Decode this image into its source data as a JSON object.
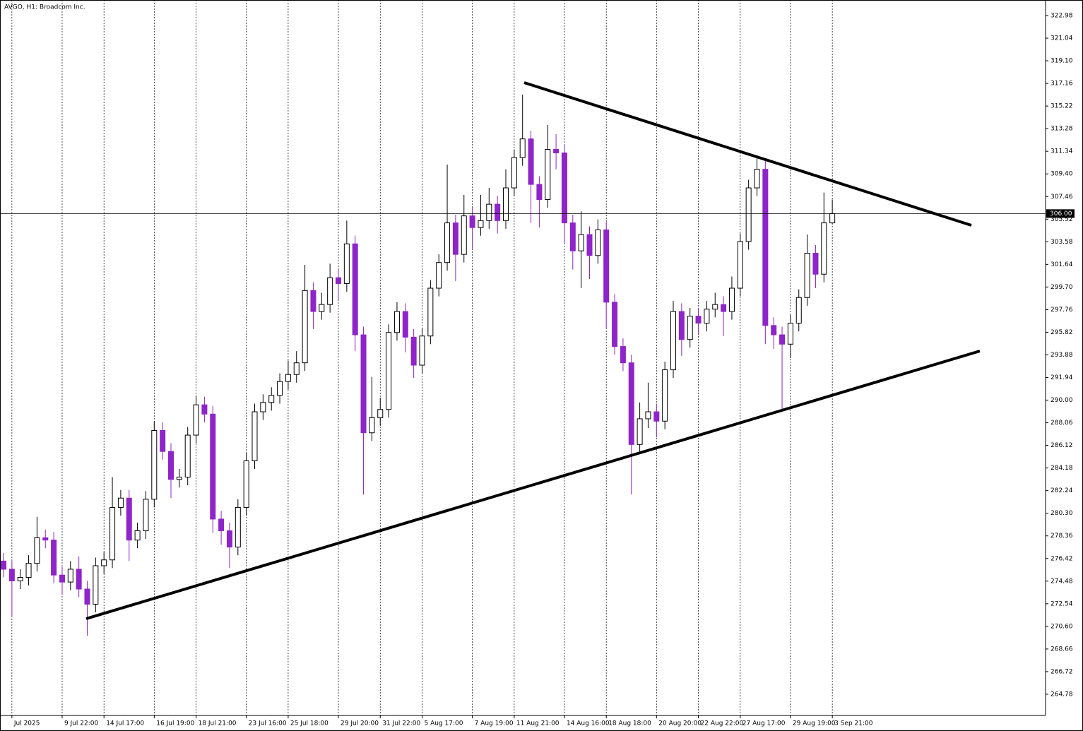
{
  "chart_data": {
    "type": "candlestick",
    "title": "AVGO, H1:  Broadcom Inc.",
    "up_color": "#ffffff",
    "down_color": "#8e24c9",
    "edge_color": "#000000",
    "ylim": [
      262.96,
      324.07
    ],
    "yticks": [
      264.78,
      266.72,
      268.66,
      {
        "value": 270.6,
        "label": "270.60"
      },
      272.54,
      274.48,
      276.42,
      278.36,
      {
        "value": 280.3,
        "label": "280.30"
      },
      282.24,
      284.18,
      286.12,
      288.06,
      {
        "value": 290,
        "label": "290.00"
      },
      291.94,
      293.88,
      295.82,
      297.76,
      {
        "value": 299.7,
        "label": "299.70"
      },
      301.64,
      303.58,
      305.52,
      307.46,
      {
        "value": 309.4,
        "label": "309.40"
      },
      311.34,
      313.28,
      315.22,
      317.16,
      {
        "value": 319.1,
        "label": "319.10"
      },
      321.04,
      322.98
    ],
    "current_price": {
      "value": 306,
      "label": "306.00"
    },
    "categories": [
      null,
      "Jul 2025",
      null,
      null,
      null,
      null,
      null,
      "9 Jul 22:00",
      null,
      null,
      null,
      null,
      "14 Jul 17:00",
      null,
      null,
      null,
      null,
      null,
      "16 Jul 19:00",
      null,
      null,
      null,
      null,
      "18 Jul 21:00",
      null,
      null,
      null,
      null,
      null,
      "23 Jul 16:00",
      null,
      null,
      null,
      null,
      "25 Jul 18:00",
      null,
      null,
      null,
      null,
      null,
      "29 Jul 20:00",
      null,
      null,
      null,
      null,
      "31 Jul 22:00",
      null,
      null,
      null,
      null,
      "5 Aug 17:00",
      null,
      null,
      null,
      null,
      null,
      "7 Aug 19:00",
      null,
      null,
      null,
      null,
      "11 Aug 21:00",
      null,
      null,
      null,
      null,
      null,
      "14 Aug 16:00",
      null,
      null,
      null,
      null,
      "18 Aug 18:00",
      null,
      null,
      null,
      null,
      null,
      "20 Aug 20:00",
      null,
      null,
      null,
      null,
      "22 Aug 22:00",
      null,
      null,
      null,
      null,
      "27 Aug 17:00",
      null,
      null,
      null,
      null,
      null,
      "29 Aug 19:00",
      null,
      null,
      null,
      null,
      "3 Sep 21:00"
    ],
    "open": [
      276.2,
      275.5,
      274.5,
      274.8,
      276,
      278.2,
      278,
      275,
      274.4,
      275.5,
      273.8,
      272.5,
      275.8,
      276.3,
      280.8,
      281.6,
      278,
      278.8,
      281.5,
      287.4,
      285.6,
      283.2,
      283.4,
      287,
      289.6,
      288.8,
      279.8,
      278.8,
      277.4,
      280.8,
      284.8,
      289,
      289.8,
      290.4,
      291.6,
      292.2,
      293.2,
      299.4,
      297.6,
      298.2,
      300.5,
      300,
      303.4,
      295.6,
      287.2,
      288.5,
      289.2,
      295.8,
      297.6,
      295.4,
      293,
      295.5,
      299.6,
      301.8,
      305.2,
      302.5,
      305.8,
      304.8,
      305.4,
      306.8,
      305.4,
      308.2,
      310.8,
      312.4,
      308.5,
      307.2,
      311.5,
      311.2,
      305.2,
      302.8,
      304.2,
      302.4,
      304.6,
      298.4,
      294.6,
      293.2,
      286.2,
      288.4,
      289,
      288.2,
      292.6,
      297.6,
      295.2,
      297.2,
      296.6,
      297.8,
      298.2,
      297.6,
      299.6,
      303.6,
      308.2,
      309.8,
      296.4,
      295.6,
      294.8,
      296.6,
      298.8,
      302.6,
      300.8,
      305.2
    ],
    "high": [
      276.9,
      276.2,
      275.5,
      276.7,
      280,
      278.9,
      278.7,
      275.7,
      276.2,
      276.6,
      274.5,
      276.5,
      277,
      283.4,
      282.3,
      282.3,
      279.5,
      282.2,
      288.2,
      288.1,
      286.3,
      284.1,
      287.7,
      290.4,
      290.3,
      289.5,
      280.5,
      279.5,
      281.5,
      285.5,
      289.7,
      290.5,
      291.1,
      292.3,
      293.4,
      294.2,
      301.6,
      300.1,
      299.2,
      301.7,
      301.2,
      305.4,
      304.1,
      296.3,
      292,
      290.2,
      296.5,
      298.4,
      298.3,
      296.1,
      296.2,
      300.3,
      302.5,
      310.2,
      305.9,
      307.6,
      306.5,
      307.6,
      308.2,
      307.5,
      309.8,
      311.5,
      316.2,
      313.1,
      309.2,
      313.6,
      312.8,
      311.9,
      305.9,
      306.2,
      304.9,
      305.5,
      305.3,
      299.1,
      295.3,
      293.9,
      289.8,
      291.5,
      289.7,
      293.3,
      298.5,
      298.3,
      297.9,
      297.9,
      298.5,
      299.2,
      298.9,
      300.6,
      304.3,
      308.9,
      310.9,
      310.5,
      297.1,
      296.3,
      297.3,
      299.5,
      304.2,
      303.3,
      307.8,
      307.2
    ],
    "low": [
      274.8,
      271.4,
      273.8,
      274.1,
      275.3,
      277.3,
      274.3,
      273.3,
      273.7,
      273.1,
      269.8,
      271.8,
      275.1,
      275.6,
      280.1,
      276.2,
      277.3,
      278.1,
      280.8,
      284.9,
      281.6,
      282.5,
      282.7,
      286.3,
      288.1,
      278.6,
      277.6,
      275.6,
      276.7,
      280.1,
      284.1,
      288.3,
      289.1,
      289.7,
      290.9,
      291.5,
      292.5,
      296.1,
      296.9,
      297.5,
      298.6,
      299.3,
      294.2,
      281.9,
      286.5,
      287.8,
      288.5,
      295.1,
      294.1,
      291.9,
      292.3,
      294.8,
      298.9,
      301.1,
      300.2,
      301.8,
      302.9,
      304.1,
      304.7,
      304.3,
      304.7,
      307.5,
      310.1,
      305.2,
      304.8,
      306.5,
      309.8,
      303.4,
      301.2,
      299.6,
      300.4,
      301.7,
      296.2,
      293.9,
      292.5,
      281.9,
      285.5,
      287.6,
      286.8,
      287.5,
      291.9,
      293.8,
      294.5,
      295.6,
      295.9,
      297.1,
      295.5,
      296.9,
      298.9,
      302.9,
      307.5,
      294.8,
      294.4,
      289.2,
      293.6,
      295.9,
      298.1,
      299.6,
      300.1,
      305.1
    ],
    "close": [
      275.5,
      274.5,
      274.8,
      276,
      278.2,
      278,
      275,
      274.4,
      275.5,
      273.8,
      272.5,
      275.8,
      276.3,
      280.8,
      281.6,
      278,
      278.8,
      281.5,
      287.4,
      285.6,
      283.2,
      283.4,
      287,
      289.6,
      288.8,
      279.8,
      278.8,
      277.4,
      280.8,
      284.8,
      289,
      289.8,
      290.4,
      291.6,
      292.2,
      293.2,
      299.4,
      297.6,
      298.2,
      300.5,
      300,
      303.4,
      295.6,
      287.2,
      288.5,
      289.2,
      295.8,
      297.6,
      295.4,
      293,
      295.5,
      299.6,
      301.8,
      305.2,
      302.5,
      305.8,
      304.8,
      305.4,
      306.8,
      305.4,
      308.2,
      310.8,
      312.4,
      308.5,
      307.2,
      311.5,
      311.2,
      305.2,
      302.8,
      304.2,
      302.4,
      304.6,
      298.4,
      294.6,
      293.2,
      286.2,
      288.4,
      289,
      288.2,
      292.6,
      297.6,
      295.2,
      297.2,
      296.6,
      297.8,
      298.2,
      297.6,
      299.6,
      303.6,
      308.2,
      309.8,
      296.4,
      295.6,
      294.8,
      296.6,
      298.8,
      302.6,
      300.8,
      305.2,
      306
    ]
  }
}
